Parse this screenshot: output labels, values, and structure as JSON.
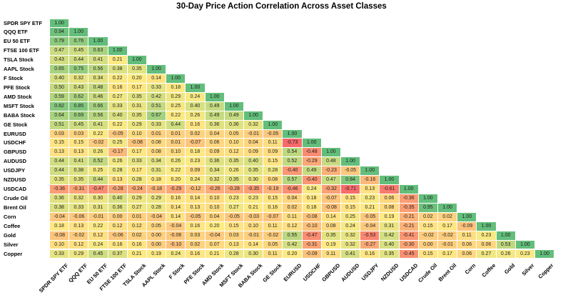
{
  "title": "30-Day Price Action Correlation Across Asset Classes",
  "chart_data": {
    "type": "heatmap",
    "title": "30-Day Price Action Correlation Across Asset Classes",
    "subtitle": "",
    "triangle": "lower",
    "grid": false,
    "legend": false,
    "x_label_rotation_deg": 45,
    "value_format": "0.00",
    "value_range": [
      -0.73,
      1.0
    ],
    "color_scale": {
      "type": "3-color",
      "min_color": "#F8696B",
      "mid_color": "#FFEB84",
      "max_color": "#63BE7B",
      "min_at": "data-min",
      "mid_at": "data-median",
      "max_at": "data-max"
    },
    "categories": [
      "SPDR SPY ETF",
      "QQQ ETF",
      "EU 50 ETF",
      "FTSE 100 ETF",
      "TSLA Stock",
      "AAPL Stock",
      "F Stock",
      "PFE Stock",
      "AMD Stock",
      "MSFT Stock",
      "BABA Stock",
      "GE Stock",
      "EURUSD",
      "USDCHF",
      "GBPUSD",
      "AUDUSD",
      "USDJPY",
      "NZDUSD",
      "USDCAD",
      "Crude Oil",
      "Brent Oil",
      "Corn",
      "Coffee",
      "Gold",
      "Silver",
      "Copper"
    ],
    "matrix_lower_triangle": [
      [
        1.0
      ],
      [
        0.94,
        1.0
      ],
      [
        0.79,
        0.76,
        1.0
      ],
      [
        0.47,
        0.45,
        0.63,
        1.0
      ],
      [
        0.43,
        0.44,
        0.41,
        0.21,
        1.0
      ],
      [
        0.65,
        0.75,
        0.56,
        0.38,
        0.35,
        1.0
      ],
      [
        0.4,
        0.32,
        0.34,
        0.22,
        0.2,
        0.14,
        1.0
      ],
      [
        0.5,
        0.43,
        0.48,
        0.16,
        0.17,
        0.33,
        0.18,
        1.0
      ],
      [
        0.59,
        0.62,
        0.46,
        0.27,
        0.35,
        0.42,
        0.29,
        0.24,
        1.0
      ],
      [
        0.82,
        0.85,
        0.66,
        0.33,
        0.31,
        0.51,
        0.25,
        0.4,
        0.49,
        1.0
      ],
      [
        0.64,
        0.69,
        0.56,
        0.4,
        0.35,
        0.67,
        0.22,
        0.26,
        0.49,
        0.49,
        1.0
      ],
      [
        0.51,
        0.45,
        0.41,
        0.22,
        0.29,
        0.33,
        0.44,
        0.16,
        0.36,
        0.36,
        0.32,
        1.0
      ],
      [
        0.03,
        0.03,
        0.22,
        -0.05,
        0.1,
        0.01,
        0.01,
        0.02,
        0.04,
        0.05,
        -0.01,
        -0.05,
        1.0
      ],
      [
        0.15,
        0.15,
        -0.02,
        0.25,
        -0.08,
        0.08,
        0.01,
        -0.07,
        0.06,
        0.1,
        0.04,
        0.11,
        -0.73,
        1.0
      ],
      [
        0.13,
        0.13,
        0.26,
        -0.17,
        0.17,
        0.08,
        0.1,
        0.18,
        0.09,
        0.12,
        0.09,
        0.09,
        0.54,
        -0.48,
        1.0
      ],
      [
        0.44,
        0.41,
        0.52,
        0.26,
        0.33,
        0.34,
        0.26,
        0.23,
        0.36,
        0.35,
        0.4,
        0.15,
        0.52,
        -0.29,
        0.48,
        1.0
      ],
      [
        0.44,
        0.38,
        0.25,
        0.28,
        0.17,
        0.31,
        0.22,
        0.09,
        0.34,
        0.26,
        0.35,
        0.28,
        -0.4,
        0.49,
        -0.23,
        -0.05,
        1.0
      ],
      [
        0.35,
        0.35,
        0.44,
        0.13,
        0.28,
        0.18,
        0.2,
        0.24,
        0.32,
        0.35,
        0.3,
        0.08,
        0.57,
        -0.4,
        0.47,
        0.84,
        -0.16,
        1.0
      ],
      [
        -0.36,
        -0.31,
        -0.47,
        -0.28,
        -0.24,
        -0.18,
        -0.29,
        -0.12,
        -0.26,
        -0.28,
        -0.35,
        -0.19,
        -0.46,
        0.24,
        -0.32,
        -0.71,
        0.13,
        -0.61,
        1.0
      ],
      [
        0.36,
        0.32,
        0.3,
        0.4,
        0.29,
        0.29,
        0.16,
        0.14,
        0.1,
        0.23,
        0.23,
        0.15,
        0.04,
        0.18,
        -0.07,
        0.15,
        0.23,
        0.06,
        -0.36,
        1.0
      ],
      [
        0.38,
        0.33,
        0.31,
        0.36,
        0.27,
        0.28,
        0.14,
        0.13,
        0.1,
        0.27,
        0.21,
        0.16,
        0.02,
        0.18,
        -0.08,
        0.15,
        0.21,
        0.08,
        -0.35,
        0.95,
        1.0
      ],
      [
        -0.04,
        -0.06,
        -0.01,
        0.0,
        0.01,
        -0.04,
        0.14,
        -0.05,
        0.04,
        -0.05,
        -0.03,
        -0.07,
        0.11,
        -0.08,
        0.14,
        0.25,
        -0.05,
        0.19,
        -0.21,
        0.02,
        0.02,
        1.0
      ],
      [
        0.18,
        0.13,
        0.22,
        0.12,
        0.12,
        0.05,
        -0.04,
        0.16,
        0.2,
        0.15,
        0.1,
        0.11,
        0.12,
        -0.1,
        0.08,
        0.24,
        -0.04,
        0.31,
        -0.21,
        0.15,
        0.17,
        -0.09,
        1.0
      ],
      [
        -0.08,
        -0.02,
        0.12,
        -0.06,
        0.02,
        0.0,
        -0.06,
        0.03,
        -0.04,
        0.03,
        -0.01,
        -0.02,
        0.55,
        -0.47,
        0.35,
        0.32,
        -0.53,
        0.42,
        -0.41,
        -0.02,
        -0.02,
        0.11,
        0.23,
        1.0
      ],
      [
        0.1,
        0.12,
        0.24,
        0.16,
        0.16,
        0.0,
        -0.1,
        0.02,
        0.07,
        0.13,
        0.14,
        0.05,
        0.42,
        -0.31,
        0.19,
        0.32,
        -0.27,
        0.4,
        -0.3,
        0.0,
        -0.01,
        0.06,
        0.06,
        0.53,
        1.0
      ],
      [
        0.33,
        0.29,
        0.45,
        0.37,
        0.21,
        0.19,
        0.24,
        0.16,
        0.21,
        0.28,
        0.3,
        0.11,
        0.2,
        -0.09,
        0.11,
        0.41,
        0.16,
        0.35,
        -0.45,
        0.15,
        0.17,
        0.06,
        0.27,
        0.26,
        0.23,
        1.0
      ]
    ]
  }
}
